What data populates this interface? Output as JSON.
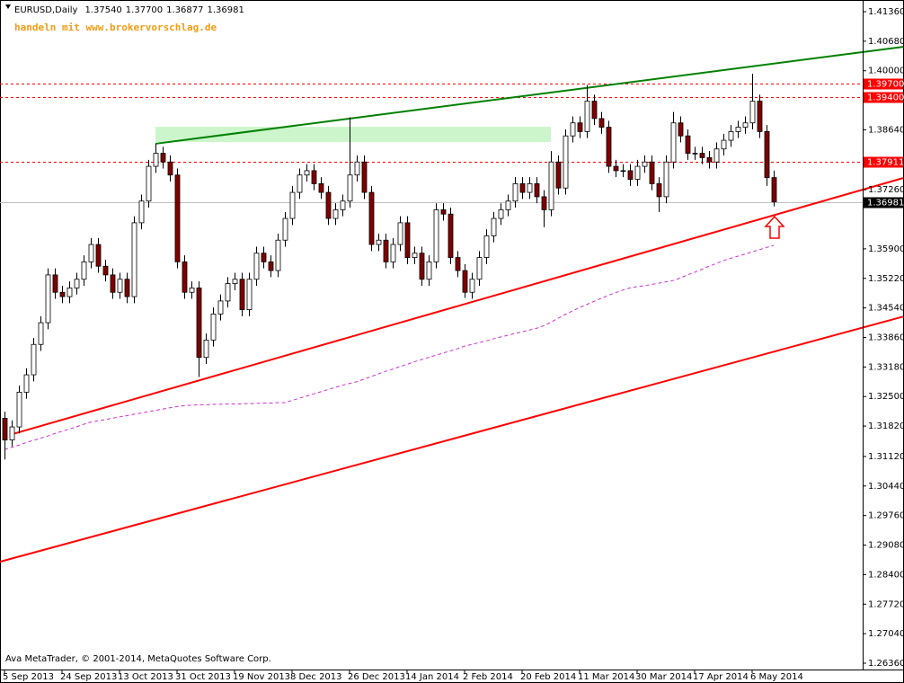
{
  "chart_data": {
    "type": "candlestick",
    "title": "EURUSD,Daily",
    "last_bar_labels": [
      "1.37540",
      "1.37700",
      "1.36877",
      "1.36981"
    ],
    "subtitle": "handeln mit www.brokervorschlag.de",
    "footer": "Ava MetaTrader, © 2001-2014, MetaQuotes Software Corp.",
    "x_labels": [
      "5 Sep 2013",
      "24 Sep 2013",
      "13 Oct 2013",
      "31 Oct 2013",
      "19 Nov 2013",
      "8 Dec 2013",
      "26 Dec 2013",
      "14 Jan 2014",
      "2 Feb 2014",
      "20 Feb 2014",
      "11 Mar 2014",
      "30 Mar 2014",
      "17 Apr 2014",
      "6 May 2014"
    ],
    "open": [
      1.32,
      1.315,
      1.318,
      1.326,
      1.33,
      1.337,
      1.342,
      1.353,
      1.349,
      1.348,
      1.35,
      1.352,
      1.356,
      1.36,
      1.355,
      1.353,
      1.349,
      1.352,
      1.348,
      1.365,
      1.37,
      1.378,
      1.381,
      1.379,
      1.376,
      1.356,
      1.349,
      1.35,
      1.334,
      1.338,
      1.344,
      1.347,
      1.351,
      1.352,
      1.345,
      1.352,
      1.358,
      1.356,
      1.354,
      1.361,
      1.366,
      1.372,
      1.376,
      1.377,
      1.374,
      1.372,
      1.366,
      1.368,
      1.37,
      1.376,
      1.379,
      1.372,
      1.36,
      1.361,
      1.356,
      1.36,
      1.365,
      1.357,
      1.358,
      1.352,
      1.356,
      1.368,
      1.367,
      1.357,
      1.354,
      1.349,
      1.352,
      1.357,
      1.362,
      1.366,
      1.368,
      1.37,
      1.374,
      1.372,
      1.374,
      1.371,
      1.368,
      1.379,
      1.373,
      1.385,
      1.388,
      1.386,
      1.393,
      1.389,
      1.387,
      1.378,
      1.377,
      1.377,
      1.375,
      1.378,
      1.379,
      1.374,
      1.371,
      1.379,
      1.388,
      1.385,
      1.381,
      1.381,
      1.38,
      1.379,
      1.382,
      1.384,
      1.386,
      1.387,
      1.388,
      1.393,
      1.386,
      1.3754
    ],
    "high": [
      1.3215,
      1.3195,
      1.3275,
      1.3315,
      1.3385,
      1.3435,
      1.3545,
      1.3545,
      1.3505,
      1.3515,
      1.3535,
      1.3575,
      1.3615,
      1.3615,
      1.3565,
      1.3545,
      1.3535,
      1.3535,
      1.3665,
      1.3715,
      1.3795,
      1.3832,
      1.3825,
      1.3805,
      1.3775,
      1.3575,
      1.3515,
      1.3515,
      1.3395,
      1.3455,
      1.3485,
      1.3525,
      1.3535,
      1.3535,
      1.3535,
      1.3595,
      1.3595,
      1.3575,
      1.3625,
      1.3675,
      1.3735,
      1.3775,
      1.3785,
      1.3785,
      1.3755,
      1.3735,
      1.3695,
      1.3715,
      1.3893,
      1.3805,
      1.3805,
      1.3735,
      1.3625,
      1.3625,
      1.3615,
      1.3665,
      1.3665,
      1.3595,
      1.3595,
      1.3575,
      1.3695,
      1.3695,
      1.3685,
      1.3585,
      1.3555,
      1.3535,
      1.3585,
      1.3635,
      1.3675,
      1.3695,
      1.3715,
      1.3755,
      1.3755,
      1.3755,
      1.3755,
      1.3725,
      1.3815,
      1.3805,
      1.3865,
      1.3895,
      1.3895,
      1.3967,
      1.3945,
      1.3905,
      1.3885,
      1.3795,
      1.3785,
      1.3785,
      1.3795,
      1.3805,
      1.3805,
      1.3755,
      1.3805,
      1.3905,
      1.3895,
      1.3865,
      1.3825,
      1.3825,
      1.3815,
      1.3835,
      1.3855,
      1.3875,
      1.3885,
      1.3895,
      1.3993,
      1.3945,
      1.3875,
      1.377
    ],
    "low": [
      1.3105,
      1.3135,
      1.3165,
      1.3245,
      1.3285,
      1.3355,
      1.3405,
      1.3475,
      1.3465,
      1.3465,
      1.3485,
      1.3505,
      1.3545,
      1.3535,
      1.3515,
      1.3475,
      1.3475,
      1.3465,
      1.3465,
      1.3635,
      1.3685,
      1.3765,
      1.3775,
      1.3745,
      1.3545,
      1.3475,
      1.3475,
      1.3295,
      1.3325,
      1.3365,
      1.3425,
      1.3455,
      1.3495,
      1.3435,
      1.3435,
      1.3505,
      1.3545,
      1.3525,
      1.3525,
      1.3595,
      1.3645,
      1.3705,
      1.3745,
      1.3725,
      1.3705,
      1.3645,
      1.3645,
      1.3665,
      1.3685,
      1.3745,
      1.3705,
      1.3585,
      1.3585,
      1.3545,
      1.3545,
      1.3585,
      1.3555,
      1.3555,
      1.3505,
      1.3505,
      1.3545,
      1.3655,
      1.3555,
      1.3525,
      1.3477,
      1.3475,
      1.3505,
      1.3555,
      1.3605,
      1.3645,
      1.3665,
      1.3685,
      1.3705,
      1.3705,
      1.3695,
      1.364,
      1.3665,
      1.3715,
      1.3715,
      1.3835,
      1.3845,
      1.3845,
      1.3875,
      1.3855,
      1.3765,
      1.3755,
      1.3755,
      1.3735,
      1.3735,
      1.3765,
      1.3725,
      1.3675,
      1.3695,
      1.3775,
      1.3835,
      1.3795,
      1.3795,
      1.3785,
      1.3775,
      1.3775,
      1.3805,
      1.3825,
      1.3845,
      1.3855,
      1.3865,
      1.3845,
      1.3735,
      1.36877
    ],
    "close": [
      1.315,
      1.318,
      1.326,
      1.33,
      1.337,
      1.342,
      1.353,
      1.349,
      1.348,
      1.35,
      1.352,
      1.356,
      1.36,
      1.355,
      1.353,
      1.349,
      1.352,
      1.348,
      1.365,
      1.37,
      1.378,
      1.381,
      1.379,
      1.376,
      1.356,
      1.349,
      1.35,
      1.334,
      1.338,
      1.344,
      1.347,
      1.351,
      1.352,
      1.345,
      1.352,
      1.358,
      1.356,
      1.354,
      1.361,
      1.366,
      1.372,
      1.376,
      1.377,
      1.374,
      1.372,
      1.366,
      1.368,
      1.37,
      1.376,
      1.379,
      1.372,
      1.36,
      1.361,
      1.356,
      1.36,
      1.365,
      1.357,
      1.358,
      1.352,
      1.356,
      1.368,
      1.367,
      1.357,
      1.354,
      1.349,
      1.352,
      1.357,
      1.362,
      1.366,
      1.368,
      1.37,
      1.374,
      1.372,
      1.374,
      1.371,
      1.368,
      1.379,
      1.373,
      1.385,
      1.388,
      1.386,
      1.393,
      1.389,
      1.387,
      1.378,
      1.377,
      1.377,
      1.375,
      1.378,
      1.379,
      1.374,
      1.371,
      1.379,
      1.388,
      1.385,
      1.381,
      1.381,
      1.38,
      1.379,
      1.382,
      1.384,
      1.386,
      1.387,
      1.388,
      1.393,
      1.386,
      1.3754,
      1.36981
    ],
    "up_color": "#ffffff",
    "down_color": "#800000",
    "wick_color": "#000000",
    "moving_average": {
      "color": "#cc33cc",
      "values": [
        1.3128,
        1.3133,
        1.3138,
        1.3144,
        1.3149,
        1.3154,
        1.3159,
        1.3165,
        1.317,
        1.3175,
        1.318,
        1.3186,
        1.3191,
        1.3194,
        1.3197,
        1.32,
        1.3203,
        1.3206,
        1.3209,
        1.3212,
        1.3215,
        1.3218,
        1.3221,
        1.3224,
        1.3227,
        1.3229,
        1.323,
        1.3231,
        1.3231,
        1.3232,
        1.3232,
        1.3233,
        1.3233,
        1.3233,
        1.3234,
        1.3234,
        1.3235,
        1.3235,
        1.3236,
        1.3236,
        1.3241,
        1.3246,
        1.3251,
        1.3256,
        1.3261,
        1.3266,
        1.3271,
        1.3276,
        1.328,
        1.3284,
        1.329,
        1.3296,
        1.3302,
        1.3308,
        1.3313,
        1.3319,
        1.3324,
        1.333,
        1.3335,
        1.334,
        1.3345,
        1.335,
        1.3355,
        1.336,
        1.3366,
        1.337,
        1.3374,
        1.3378,
        1.3383,
        1.3387,
        1.3391,
        1.3395,
        1.3399,
        1.3403,
        1.3407,
        1.3413,
        1.3421,
        1.343,
        1.3439,
        1.3447,
        1.3455,
        1.3462,
        1.3469,
        1.3476,
        1.3483,
        1.3489,
        1.3495,
        1.35,
        1.3503,
        1.3505,
        1.3508,
        1.3511,
        1.3514,
        1.3517,
        1.3523,
        1.353,
        1.3536,
        1.3543,
        1.355,
        1.3556,
        1.3563,
        1.3568,
        1.3573,
        1.3578,
        1.3583,
        1.3588,
        1.3593,
        1.3598
      ]
    },
    "trendlines": [
      {
        "color": "#008000",
        "bars": [
          21,
          125
        ],
        "prices": [
          1.3832,
          1.4055
        ]
      },
      {
        "color": "#ff0000",
        "bars": [
          1,
          125
        ],
        "prices": [
          1.3163,
          1.3753
        ]
      },
      {
        "color": "#ff0000",
        "bars": [
          -1,
          125
        ],
        "prices": [
          1.2868,
          1.3434
        ]
      }
    ],
    "zone": {
      "color": "#ccf5cc",
      "bars": [
        21,
        76
      ],
      "prices": [
        1.3836,
        1.3871
      ]
    },
    "levels": [
      {
        "value": 1.397,
        "label": "1.39700",
        "color": "#ff0000"
      },
      {
        "value": 1.394,
        "label": "1.39400",
        "color": "#ff0000"
      },
      {
        "value": 1.37911,
        "label": "1.37911",
        "color": "#ff0000"
      }
    ],
    "ylim": [
      1.26215,
      1.41629
    ],
    "yticks": [
      {
        "value": 1.4136,
        "label": "1.41360"
      },
      {
        "value": 1.4068,
        "label": "1.40680"
      },
      {
        "value": 1.4,
        "label": "1.40000"
      },
      {
        "value": 1.3864,
        "label": "1.38640"
      },
      {
        "value": 1.3726,
        "label": "1.37260"
      },
      {
        "value": 1.359,
        "label": "1.35900"
      },
      {
        "value": 1.3522,
        "label": "1.35220"
      },
      {
        "value": 1.3454,
        "label": "1.34540"
      },
      {
        "value": 1.3386,
        "label": "1.33860"
      },
      {
        "value": 1.3318,
        "label": "1.33180"
      },
      {
        "value": 1.325,
        "label": "1.32500"
      },
      {
        "value": 1.3182,
        "label": "1.31820"
      },
      {
        "value": 1.3112,
        "label": "1.31120"
      },
      {
        "value": 1.3044,
        "label": "1.30440"
      },
      {
        "value": 1.2976,
        "label": "1.29760"
      },
      {
        "value": 1.2908,
        "label": "1.29080"
      },
      {
        "value": 1.284,
        "label": "1.28400"
      },
      {
        "value": 1.2772,
        "label": "1.27720"
      },
      {
        "value": 1.2704,
        "label": "1.27040"
      },
      {
        "value": 1.2636,
        "label": "1.26360"
      }
    ]
  }
}
